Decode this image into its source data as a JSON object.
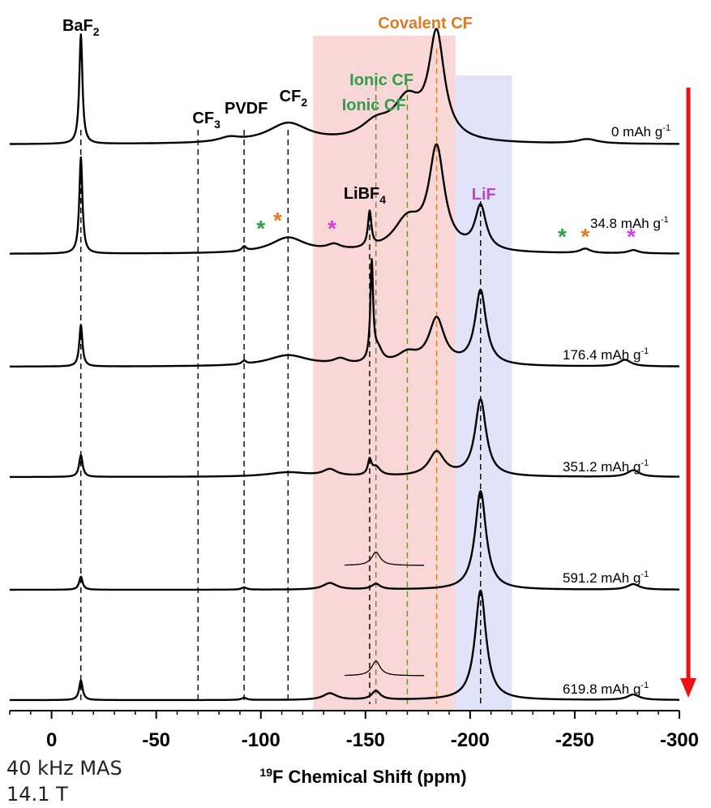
{
  "chart_data": {
    "type": "line",
    "title": "",
    "xlabel": "19F Chemical Shift (ppm)",
    "xlabel_sup": "19",
    "xlabel_main": "F Chemical Shift (ppm)",
    "ylabel": "",
    "xlim": [
      20,
      -300
    ],
    "x_reversed": true,
    "xticks": [
      0,
      -50,
      -100,
      -150,
      -200,
      -250,
      -300
    ],
    "xtick_labels": [
      "0",
      "-50",
      "-100",
      "-150",
      "-200",
      "-250",
      "-300"
    ],
    "grid": false,
    "conditions": [
      "40 kHz MAS",
      "14.1 T"
    ],
    "series": [
      {
        "name": "0 mAh g-1",
        "label_main": "0 mAh g",
        "label_sup": "-1",
        "peaks": [
          [
            -14,
            1.0,
            0.9
          ],
          [
            -113,
            0.18,
            12
          ],
          [
            -85,
            0.04,
            6
          ],
          [
            -155,
            0.15,
            9
          ],
          [
            -170,
            0.35,
            8
          ],
          [
            -184,
            0.95,
            4.5
          ],
          [
            -256,
            0.04,
            6
          ]
        ]
      },
      {
        "name": "34.8 mAh g-1",
        "label_main": "34.8 mAh g",
        "label_sup": "-1",
        "peaks": [
          [
            -14,
            0.88,
            0.9
          ],
          [
            -113,
            0.14,
            10
          ],
          [
            -92,
            0.04,
            1.2
          ],
          [
            -135,
            0.05,
            4
          ],
          [
            -152,
            0.32,
            1.0
          ],
          [
            -170,
            0.28,
            8
          ],
          [
            -184,
            0.92,
            4.5
          ],
          [
            -205,
            0.4,
            3.2
          ],
          [
            -255,
            0.04,
            3
          ],
          [
            -278,
            0.03,
            3
          ]
        ]
      },
      {
        "name": "176.4 mAh g-1",
        "label_main": "176.4 mAh g",
        "label_sup": "-1",
        "peaks": [
          [
            -14,
            0.38,
            0.9
          ],
          [
            -113,
            0.1,
            12
          ],
          [
            -92,
            0.03,
            1.2
          ],
          [
            -138,
            0.05,
            4
          ],
          [
            -153,
            0.9,
            0.8
          ],
          [
            -156,
            0.12,
            2.5
          ],
          [
            -170,
            0.1,
            6
          ],
          [
            -184,
            0.42,
            4.5
          ],
          [
            -205,
            0.68,
            3.2
          ],
          [
            -274,
            0.06,
            3.5
          ]
        ]
      },
      {
        "name": "351.2 mAh g-1",
        "label_main": "351.2 mAh g",
        "label_sup": "-1",
        "peaks": [
          [
            -14,
            0.2,
            1.0
          ],
          [
            -113,
            0.04,
            12
          ],
          [
            -133,
            0.06,
            4
          ],
          [
            -152,
            0.13,
            1.0
          ],
          [
            -155,
            0.08,
            2.5
          ],
          [
            -184,
            0.22,
            4.5
          ],
          [
            -205,
            0.7,
            3.2
          ],
          [
            -278,
            0.06,
            3.5
          ]
        ]
      },
      {
        "name": "591.2 mAh g-1",
        "label_main": "591.2 mAh g",
        "label_sup": "-1",
        "peaks": [
          [
            -14,
            0.12,
            1.0
          ],
          [
            -92,
            0.02,
            1.5
          ],
          [
            -133,
            0.06,
            4
          ],
          [
            -155,
            0.05,
            2.5
          ],
          [
            -205,
            0.9,
            3.2
          ],
          [
            -278,
            0.05,
            3.5
          ]
        ]
      },
      {
        "name": "619.8 mAh g-1",
        "label_main": "619.8 mAh g",
        "label_sup": "-1",
        "peaks": [
          [
            -14,
            0.18,
            1.0
          ],
          [
            -92,
            0.02,
            1.5
          ],
          [
            -133,
            0.06,
            4
          ],
          [
            -155,
            0.08,
            2.5
          ],
          [
            -205,
            1.0,
            3.2
          ],
          [
            -278,
            0.05,
            3.5
          ]
        ]
      }
    ],
    "insets": [
      {
        "series_index": 4,
        "x_range": [
          -140,
          -178
        ],
        "peak": [
          -155,
          0.55,
          2.5
        ]
      },
      {
        "series_index": 5,
        "x_range": [
          -140,
          -178
        ],
        "peak": [
          -155,
          0.6,
          2.5
        ]
      }
    ],
    "shaded_regions": [
      {
        "x": [
          -125,
          -193
        ],
        "color": "#f9d7d7"
      },
      {
        "x": [
          -193,
          -220
        ],
        "color": "#e1e3f9"
      }
    ],
    "reference_lines": [
      {
        "x": -14,
        "color": "#000000"
      },
      {
        "x": -70,
        "color": "#000000"
      },
      {
        "x": -92,
        "color": "#000000"
      },
      {
        "x": -113,
        "color": "#000000"
      },
      {
        "x": -152,
        "color": "#000000"
      },
      {
        "x": -155,
        "color": "#6b8e23"
      },
      {
        "x": -170,
        "color": "#6b8e23"
      },
      {
        "x": -184,
        "color": "#e07b24"
      },
      {
        "x": -205,
        "color": "#000000"
      }
    ],
    "annotations": [
      {
        "main": "BaF",
        "sub": "2",
        "x": -14,
        "color": "#000000"
      },
      {
        "main": "CF",
        "sub": "3",
        "x": -74,
        "color": "#000000"
      },
      {
        "main": "PVDF",
        "sub": "",
        "x": -93,
        "color": "#000000"
      },
      {
        "main": "CF",
        "sub": "2",
        "x": -114,
        "color": "#000000"
      },
      {
        "main": "Covalent CF",
        "sub": "",
        "x": -184,
        "color": "#e07b24"
      },
      {
        "main": "Ionic CF",
        "sub": "",
        "x": -160,
        "color": "#2e9e48"
      },
      {
        "main": "Ionic CF",
        "sub": "",
        "x": -154,
        "color": "#2e9e48"
      },
      {
        "main": "LiBF",
        "sub": "4",
        "x": -152,
        "color": "#000000"
      },
      {
        "main": "LiF",
        "sub": "",
        "x": -205,
        "color": "#c43fd3"
      }
    ],
    "spinning_sidebands": [
      {
        "x": -100,
        "series_index": 1,
        "color": "#2e9e48"
      },
      {
        "x": -108,
        "series_index": 1,
        "color": "#e07b24"
      },
      {
        "x": -134,
        "series_index": 1,
        "color": "#d93de0"
      },
      {
        "x": -244,
        "series_index": 1,
        "color": "#2e9e48"
      },
      {
        "x": -255,
        "series_index": 1,
        "color": "#e07b24"
      },
      {
        "x": -277,
        "series_index": 1,
        "color": "#d93de0"
      }
    ],
    "arrow_color": "#ee1111"
  }
}
